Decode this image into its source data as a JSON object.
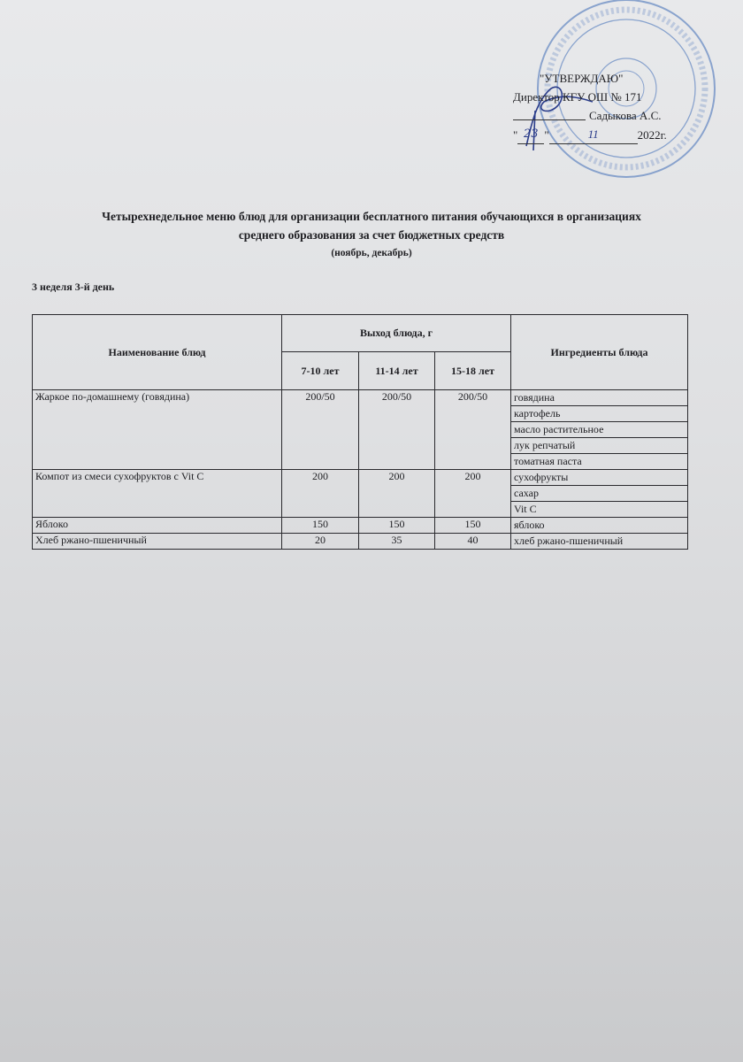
{
  "approval": {
    "heading": "\"УТВЕРЖДАЮ\"",
    "position": "Директор КГУ ОШ № 171",
    "name": "Садыкова А.С.",
    "date_day": "23",
    "date_month": "11",
    "date_year": "2022г.",
    "stamp_color": "#5c7fb8"
  },
  "title": {
    "line1": "Четырехнедельное меню блюд для организации бесплатного питания обучающихся в организациях",
    "line2": "среднего образования за счет бюджетных средств",
    "period": "(ноябрь, декабрь)"
  },
  "day_label": "3 неделя 3-й день",
  "table": {
    "headers": {
      "dish": "Наименование блюд",
      "yield": "Выход блюда, г",
      "age1": "7-10 лет",
      "age2": "11-14 лет",
      "age3": "15-18 лет",
      "ingredients": "Ингредиенты блюда"
    },
    "rows": [
      {
        "dish": "Жаркое по-домашнему (говядина)",
        "y1": "200/50",
        "y2": "200/50",
        "y3": "200/50",
        "ingredients": [
          "говядина",
          "картофель",
          "масло растительное",
          "лук репчатый",
          "томатная паста"
        ]
      },
      {
        "dish": "Компот из смеси сухофруктов с Vit C",
        "y1": "200",
        "y2": "200",
        "y3": "200",
        "ingredients": [
          "сухофрукты",
          "сахар",
          "Vit C"
        ]
      },
      {
        "dish": "Яблоко",
        "y1": "150",
        "y2": "150",
        "y3": "150",
        "ingredients": [
          "яблоко"
        ]
      },
      {
        "dish": "Хлеб ржано-пшеничный",
        "y1": "20",
        "y2": "35",
        "y3": "40",
        "ingredients": [
          "хлеб ржано-пшеничный"
        ]
      }
    ]
  }
}
